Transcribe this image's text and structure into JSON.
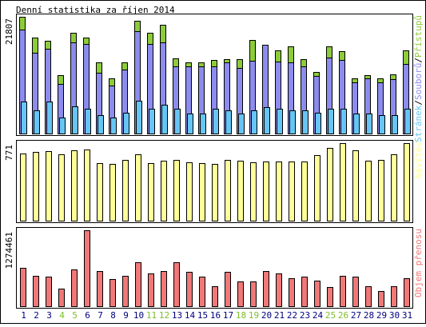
{
  "title": "Denní statistika za říjen 2014",
  "colors": {
    "hits": "#8ccc3a",
    "files": "#8c8cee",
    "pages": "#66c5f5",
    "visits": "#ffff99",
    "kbytes": "#f07878",
    "weekend": "#7fbd2a",
    "weekday": "#000080",
    "frame": "#000000"
  },
  "chart_data": [
    {
      "type": "bar",
      "categories": [
        "1",
        "2",
        "3",
        "4",
        "5",
        "6",
        "7",
        "8",
        "9",
        "10",
        "11",
        "12",
        "13",
        "14",
        "15",
        "16",
        "17",
        "18",
        "19",
        "20",
        "21",
        "22",
        "23",
        "24",
        "25",
        "26",
        "27",
        "28",
        "29",
        "30",
        "31"
      ],
      "weekend_days": [
        "4",
        "5",
        "11",
        "12",
        "18",
        "19",
        "25",
        "26"
      ],
      "ylim": [
        0,
        21807
      ],
      "ytick_label": "21807",
      "legend": [
        {
          "text": "Stránek",
          "color": "#66c5f5"
        },
        {
          "text": "/",
          "color": "#000000"
        },
        {
          "text": "Souborů",
          "color": "#8c8cee"
        },
        {
          "text": "/",
          "color": "#000000"
        },
        {
          "text": "Přístupů",
          "color": "#8ccc3a"
        }
      ],
      "series": [
        {
          "name": "Přístupů",
          "values": [
            21807,
            17900,
            17300,
            11000,
            18800,
            17900,
            13300,
            10400,
            13300,
            21100,
            18800,
            20300,
            14100,
            13400,
            13400,
            13800,
            14000,
            14000,
            17500,
            15600,
            15600,
            16300,
            14000,
            11600,
            16300,
            15500,
            10400,
            11000,
            10400,
            11200,
            15600
          ]
        },
        {
          "name": "Souborů",
          "values": [
            19400,
            15200,
            15800,
            9300,
            17000,
            16800,
            11400,
            9000,
            12000,
            19100,
            16700,
            17000,
            12600,
            12600,
            12600,
            12600,
            13300,
            12300,
            13600,
            16600,
            13500,
            13400,
            12600,
            10900,
            14200,
            13800,
            9700,
            10400,
            9700,
            10300,
            13100
          ]
        },
        {
          "name": "Stránek",
          "values": [
            6100,
            4400,
            6100,
            3100,
            5200,
            4700,
            3500,
            3100,
            4000,
            6300,
            4700,
            5500,
            4800,
            3800,
            3800,
            4700,
            4400,
            3800,
            4400,
            5000,
            4700,
            4400,
            4400,
            4000,
            4700,
            4700,
            3800,
            3800,
            3500,
            3500,
            4700
          ]
        }
      ]
    },
    {
      "type": "bar",
      "categories": [
        "1",
        "2",
        "3",
        "4",
        "5",
        "6",
        "7",
        "8",
        "9",
        "10",
        "11",
        "12",
        "13",
        "14",
        "15",
        "16",
        "17",
        "18",
        "19",
        "20",
        "21",
        "22",
        "23",
        "24",
        "25",
        "26",
        "27",
        "28",
        "29",
        "30",
        "31"
      ],
      "ylim": [
        0,
        771
      ],
      "ytick_label": "771",
      "legend": [
        {
          "text": "Návštěv",
          "color": "#ffff99"
        }
      ],
      "series": [
        {
          "name": "Návštěv",
          "values": [
            671,
            686,
            691,
            662,
            700,
            705,
            573,
            569,
            609,
            662,
            573,
            600,
            604,
            582,
            573,
            569,
            609,
            595,
            582,
            591,
            591,
            587,
            587,
            655,
            726,
            771,
            700,
            595,
            609,
            659,
            771
          ]
        }
      ]
    },
    {
      "type": "bar",
      "categories": [
        "1",
        "2",
        "3",
        "4",
        "5",
        "6",
        "7",
        "8",
        "9",
        "10",
        "11",
        "12",
        "13",
        "14",
        "15",
        "16",
        "17",
        "18",
        "19",
        "20",
        "21",
        "22",
        "23",
        "24",
        "25",
        "26",
        "27",
        "28",
        "29",
        "30",
        "31"
      ],
      "ylim": [
        0,
        1274461
      ],
      "ytick_label": "1274461",
      "legend": [
        {
          "text": "Objem přenosu",
          "color": "#f07878"
        }
      ],
      "series": [
        {
          "name": "Objem přenosu",
          "values": [
            650000,
            520000,
            500000,
            300000,
            630000,
            1274461,
            600000,
            460000,
            520000,
            740000,
            560000,
            600000,
            740000,
            580000,
            500000,
            350000,
            580000,
            430000,
            420000,
            600000,
            560000,
            480000,
            510000,
            440000,
            330000,
            520000,
            500000,
            340000,
            270000,
            340000,
            480000
          ]
        }
      ]
    }
  ]
}
